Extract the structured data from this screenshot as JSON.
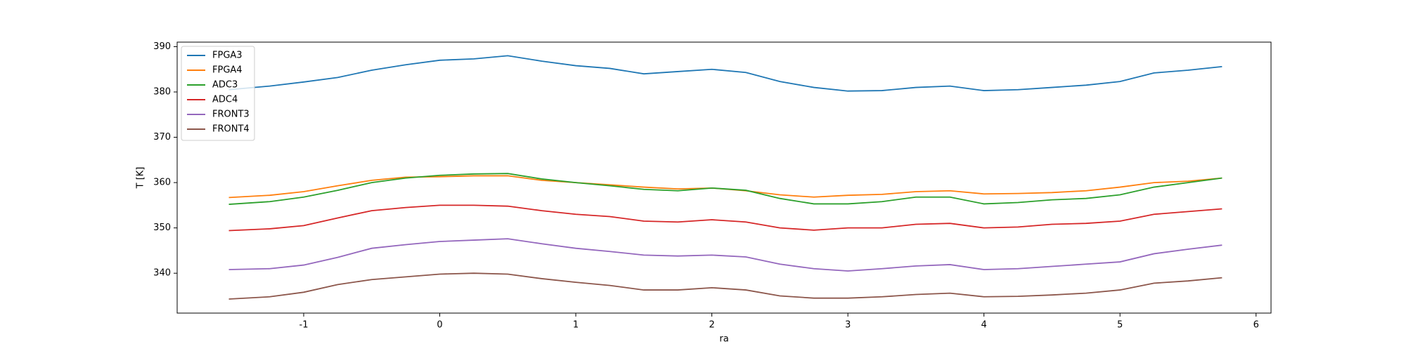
{
  "chart_data": {
    "type": "line",
    "x_label": "ra",
    "y_label": "T [K]",
    "x": [
      -1.55,
      -1.25,
      -1,
      -0.75,
      -0.5,
      -0.25,
      0,
      0.25,
      0.5,
      0.75,
      1,
      1.25,
      1.5,
      1.75,
      2,
      2.25,
      2.5,
      2.75,
      3,
      3.25,
      3.5,
      3.75,
      4,
      4.25,
      4.5,
      4.75,
      5,
      5.25,
      5.5,
      5.75
    ],
    "series": [
      {
        "name": "FPGA3",
        "color": "#1f77b4",
        "values": [
          380.5,
          381.3,
          382.2,
          383.2,
          384.8,
          386,
          387,
          387.3,
          388,
          386.8,
          385.8,
          385.2,
          384,
          384.5,
          385,
          384.3,
          382.3,
          381,
          380.2,
          380.3,
          381,
          381.3,
          380.3,
          380.5,
          381,
          381.5,
          382.3,
          384.2,
          384.8,
          385.6
        ]
      },
      {
        "name": "FPGA4",
        "color": "#ff7f0e",
        "values": [
          356.7,
          357.2,
          358,
          359.3,
          360.5,
          361.2,
          361.3,
          361.5,
          361.5,
          360.5,
          360,
          359.5,
          359,
          358.6,
          358.8,
          358.2,
          357.3,
          356.8,
          357.2,
          357.4,
          358,
          358.2,
          357.5,
          357.6,
          357.8,
          358.2,
          359,
          360,
          360.3,
          361
        ]
      },
      {
        "name": "ADC3",
        "color": "#2ca02c",
        "values": [
          355.2,
          355.8,
          356.8,
          358.3,
          360,
          361,
          361.6,
          361.9,
          362,
          360.8,
          360,
          359.3,
          358.5,
          358.2,
          358.8,
          358.3,
          356.5,
          355.3,
          355.3,
          355.8,
          356.8,
          356.8,
          355.3,
          355.6,
          356.2,
          356.5,
          357.3,
          359,
          360,
          361
        ]
      },
      {
        "name": "ADC4",
        "color": "#d62728",
        "values": [
          349.4,
          349.8,
          350.5,
          352.2,
          353.8,
          354.5,
          355,
          355,
          354.8,
          353.8,
          353,
          352.5,
          351.5,
          351.3,
          351.8,
          351.3,
          350,
          349.5,
          350,
          350,
          350.8,
          351,
          350,
          350.2,
          350.8,
          351,
          351.5,
          353,
          353.6,
          354.2
        ]
      },
      {
        "name": "FRONT3",
        "color": "#9467bd",
        "values": [
          340.8,
          341,
          341.8,
          343.5,
          345.5,
          346.3,
          347,
          347.3,
          347.6,
          346.5,
          345.5,
          344.8,
          344,
          343.8,
          344,
          343.6,
          342,
          341,
          340.5,
          341,
          341.6,
          341.9,
          340.8,
          341,
          341.5,
          342,
          342.5,
          344.3,
          345.3,
          346.2
        ]
      },
      {
        "name": "FRONT4",
        "color": "#8c564b",
        "values": [
          334.3,
          334.8,
          335.8,
          337.5,
          338.6,
          339.2,
          339.8,
          340,
          339.8,
          338.8,
          338,
          337.3,
          336.3,
          336.3,
          336.8,
          336.3,
          335,
          334.5,
          334.5,
          334.8,
          335.3,
          335.6,
          334.8,
          334.9,
          335.2,
          335.6,
          336.3,
          337.8,
          338.3,
          339
        ]
      }
    ],
    "xlim": [
      -1.93,
      6.11
    ],
    "xticks": [
      -1,
      0,
      1,
      2,
      3,
      4,
      5,
      6
    ],
    "ylim": [
      331.2,
      391
    ],
    "yticks": [
      340,
      350,
      360,
      370,
      380,
      390
    ],
    "grid": false,
    "legend": "upper left"
  }
}
